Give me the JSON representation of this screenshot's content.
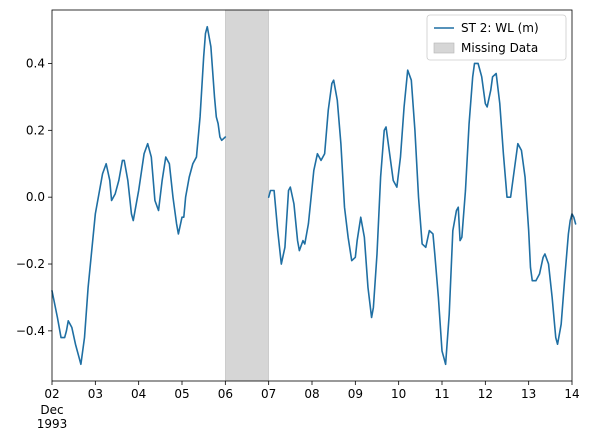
{
  "chart_data": {
    "type": "line",
    "title": "",
    "xlabel": "",
    "ylabel": "",
    "x_domain": [
      "1993-12-02",
      "1993-12-14"
    ],
    "ylim": [
      -0.55,
      0.56
    ],
    "x_ticks": [
      {
        "date": "1993-12-02",
        "label": "02",
        "sublabels": [
          "Dec",
          "1993"
        ]
      },
      {
        "date": "1993-12-03",
        "label": "03"
      },
      {
        "date": "1993-12-04",
        "label": "04"
      },
      {
        "date": "1993-12-05",
        "label": "05"
      },
      {
        "date": "1993-12-06",
        "label": "06"
      },
      {
        "date": "1993-12-07",
        "label": "07"
      },
      {
        "date": "1993-12-08",
        "label": "08"
      },
      {
        "date": "1993-12-09",
        "label": "09"
      },
      {
        "date": "1993-12-10",
        "label": "10"
      },
      {
        "date": "1993-12-11",
        "label": "11"
      },
      {
        "date": "1993-12-12",
        "label": "12"
      },
      {
        "date": "1993-12-13",
        "label": "13"
      },
      {
        "date": "1993-12-14",
        "label": "14"
      }
    ],
    "y_ticks": [
      {
        "value": 0.4,
        "label": "0.4"
      },
      {
        "value": 0.2,
        "label": "0.2"
      },
      {
        "value": 0.0,
        "label": "0.0"
      },
      {
        "value": -0.2,
        "label": "−0.2"
      },
      {
        "value": -0.4,
        "label": "−0.4"
      }
    ],
    "grid": false,
    "legend_position": "top-right",
    "legend": [
      {
        "label": "ST 2: WL (m)",
        "kind": "line"
      },
      {
        "label": "Missing Data",
        "kind": "patch"
      }
    ],
    "missing_span": {
      "start": "1993-12-06",
      "end": "1993-12-07",
      "color": "#d6d6d6"
    },
    "series": [
      {
        "name": "ST 2: WL (m)",
        "color": "#1f6fa3",
        "segments": [
          [
            [
              "1993-12-02T00:00",
              -0.28
            ],
            [
              "1993-12-02T03:00",
              -0.36
            ],
            [
              "1993-12-02T05:00",
              -0.42
            ],
            [
              "1993-12-02T07:00",
              -0.42
            ],
            [
              "1993-12-02T08:00",
              -0.4
            ],
            [
              "1993-12-02T09:00",
              -0.37
            ],
            [
              "1993-12-02T10:00",
              -0.38
            ],
            [
              "1993-12-02T11:00",
              -0.39
            ],
            [
              "1993-12-02T13:00",
              -0.44
            ],
            [
              "1993-12-02T15:00",
              -0.48
            ],
            [
              "1993-12-02T16:00",
              -0.5
            ],
            [
              "1993-12-02T18:00",
              -0.42
            ],
            [
              "1993-12-02T20:00",
              -0.27
            ],
            [
              "1993-12-03T00:00",
              -0.05
            ],
            [
              "1993-12-03T04:00",
              0.07
            ],
            [
              "1993-12-03T06:00",
              0.1
            ],
            [
              "1993-12-03T08:00",
              0.05
            ],
            [
              "1993-12-03T09:00",
              -0.01
            ],
            [
              "1993-12-03T11:00",
              0.01
            ],
            [
              "1993-12-03T13:00",
              0.05
            ],
            [
              "1993-12-03T15:00",
              0.11
            ],
            [
              "1993-12-03T16:00",
              0.11
            ],
            [
              "1993-12-03T18:00",
              0.05
            ],
            [
              "1993-12-03T20:00",
              -0.05
            ],
            [
              "1993-12-03T21:00",
              -0.07
            ],
            [
              "1993-12-04T00:00",
              0.02
            ],
            [
              "1993-12-04T03:00",
              0.13
            ],
            [
              "1993-12-04T05:00",
              0.16
            ],
            [
              "1993-12-04T07:00",
              0.12
            ],
            [
              "1993-12-04T09:00",
              -0.01
            ],
            [
              "1993-12-04T11:00",
              -0.04
            ],
            [
              "1993-12-04T13:00",
              0.05
            ],
            [
              "1993-12-04T15:00",
              0.12
            ],
            [
              "1993-12-04T17:00",
              0.1
            ],
            [
              "1993-12-04T19:00",
              0.0
            ],
            [
              "1993-12-04T21:00",
              -0.08
            ],
            [
              "1993-12-04T22:00",
              -0.11
            ],
            [
              "1993-12-05T00:00",
              -0.06
            ],
            [
              "1993-12-05T01:00",
              -0.06
            ],
            [
              "1993-12-05T02:00",
              0.0
            ],
            [
              "1993-12-05T03:00",
              0.03
            ],
            [
              "1993-12-05T04:00",
              0.06
            ],
            [
              "1993-12-05T06:00",
              0.1
            ],
            [
              "1993-12-05T08:00",
              0.12
            ],
            [
              "1993-12-05T10:00",
              0.24
            ],
            [
              "1993-12-05T12:00",
              0.42
            ],
            [
              "1993-12-05T13:00",
              0.49
            ],
            [
              "1993-12-05T14:00",
              0.51
            ],
            [
              "1993-12-05T16:00",
              0.45
            ],
            [
              "1993-12-05T18:00",
              0.3
            ],
            [
              "1993-12-05T19:00",
              0.24
            ],
            [
              "1993-12-05T20:00",
              0.22
            ],
            [
              "1993-12-05T21:00",
              0.18
            ],
            [
              "1993-12-05T22:00",
              0.17
            ],
            [
              "1993-12-06T00:00",
              0.18
            ]
          ],
          [
            [
              "1993-12-07T00:00",
              0.0
            ],
            [
              "1993-12-07T01:00",
              0.02
            ],
            [
              "1993-12-07T03:00",
              0.02
            ],
            [
              "1993-12-07T05:00",
              -0.1
            ],
            [
              "1993-12-07T07:00",
              -0.2
            ],
            [
              "1993-12-07T09:00",
              -0.15
            ],
            [
              "1993-12-07T11:00",
              0.02
            ],
            [
              "1993-12-07T12:00",
              0.03
            ],
            [
              "1993-12-07T14:00",
              -0.02
            ],
            [
              "1993-12-07T16:00",
              -0.13
            ],
            [
              "1993-12-07T17:00",
              -0.16
            ],
            [
              "1993-12-07T19:00",
              -0.13
            ],
            [
              "1993-12-07T20:00",
              -0.14
            ],
            [
              "1993-12-07T22:00",
              -0.08
            ],
            [
              "1993-12-08T01:00",
              0.08
            ],
            [
              "1993-12-08T03:00",
              0.13
            ],
            [
              "1993-12-08T05:00",
              0.11
            ],
            [
              "1993-12-08T07:00",
              0.13
            ],
            [
              "1993-12-08T09:00",
              0.26
            ],
            [
              "1993-12-08T11:00",
              0.34
            ],
            [
              "1993-12-08T12:00",
              0.35
            ],
            [
              "1993-12-08T14:00",
              0.29
            ],
            [
              "1993-12-08T16:00",
              0.16
            ],
            [
              "1993-12-08T18:00",
              -0.03
            ],
            [
              "1993-12-08T20:00",
              -0.12
            ],
            [
              "1993-12-08T22:00",
              -0.19
            ],
            [
              "1993-12-09T00:00",
              -0.18
            ],
            [
              "1993-12-09T01:00",
              -0.13
            ],
            [
              "1993-12-09T03:00",
              -0.06
            ],
            [
              "1993-12-09T05:00",
              -0.12
            ],
            [
              "1993-12-09T07:00",
              -0.27
            ],
            [
              "1993-12-09T09:00",
              -0.36
            ],
            [
              "1993-12-09T10:00",
              -0.33
            ],
            [
              "1993-12-09T12:00",
              -0.17
            ],
            [
              "1993-12-09T14:00",
              0.06
            ],
            [
              "1993-12-09T16:00",
              0.2
            ],
            [
              "1993-12-09T17:00",
              0.21
            ],
            [
              "1993-12-09T19:00",
              0.13
            ],
            [
              "1993-12-09T21:00",
              0.05
            ],
            [
              "1993-12-09T23:00",
              0.03
            ],
            [
              "1993-12-10T01:00",
              0.12
            ],
            [
              "1993-12-10T03:00",
              0.27
            ],
            [
              "1993-12-10T05:00",
              0.38
            ],
            [
              "1993-12-10T07:00",
              0.35
            ],
            [
              "1993-12-10T09:00",
              0.2
            ],
            [
              "1993-12-10T11:00",
              0.0
            ],
            [
              "1993-12-10T13:00",
              -0.14
            ],
            [
              "1993-12-10T15:00",
              -0.15
            ],
            [
              "1993-12-10T17:00",
              -0.1
            ],
            [
              "1993-12-10T19:00",
              -0.11
            ],
            [
              "1993-12-10T20:00",
              -0.17
            ],
            [
              "1993-12-10T22:00",
              -0.3
            ],
            [
              "1993-12-11T00:00",
              -0.46
            ],
            [
              "1993-12-11T01:00",
              -0.48
            ],
            [
              "1993-12-11T02:00",
              -0.5
            ],
            [
              "1993-12-11T04:00",
              -0.35
            ],
            [
              "1993-12-11T06:00",
              -0.1
            ],
            [
              "1993-12-11T08:00",
              -0.04
            ],
            [
              "1993-12-11T09:00",
              -0.03
            ],
            [
              "1993-12-11T10:00",
              -0.13
            ],
            [
              "1993-12-11T11:00",
              -0.12
            ],
            [
              "1993-12-11T13:00",
              0.02
            ],
            [
              "1993-12-11T15:00",
              0.22
            ],
            [
              "1993-12-11T17:00",
              0.36
            ],
            [
              "1993-12-11T18:00",
              0.4
            ],
            [
              "1993-12-11T20:00",
              0.4
            ],
            [
              "1993-12-11T22:00",
              0.36
            ],
            [
              "1993-12-12T00:00",
              0.28
            ],
            [
              "1993-12-12T01:00",
              0.27
            ],
            [
              "1993-12-12T03:00",
              0.32
            ],
            [
              "1993-12-12T04:00",
              0.36
            ],
            [
              "1993-12-12T06:00",
              0.37
            ],
            [
              "1993-12-12T08:00",
              0.28
            ],
            [
              "1993-12-12T10:00",
              0.13
            ],
            [
              "1993-12-12T12:00",
              0.0
            ],
            [
              "1993-12-12T14:00",
              0.0
            ],
            [
              "1993-12-12T16:00",
              0.08
            ],
            [
              "1993-12-12T18:00",
              0.16
            ],
            [
              "1993-12-12T20:00",
              0.14
            ],
            [
              "1993-12-12T22:00",
              0.06
            ],
            [
              "1993-12-13T00:00",
              -0.1
            ],
            [
              "1993-12-13T01:00",
              -0.21
            ],
            [
              "1993-12-13T02:00",
              -0.25
            ],
            [
              "1993-12-13T04:00",
              -0.25
            ],
            [
              "1993-12-13T06:00",
              -0.23
            ],
            [
              "1993-12-13T08:00",
              -0.18
            ],
            [
              "1993-12-13T09:00",
              -0.17
            ],
            [
              "1993-12-13T11:00",
              -0.2
            ],
            [
              "1993-12-13T13:00",
              -0.3
            ],
            [
              "1993-12-13T15:00",
              -0.42
            ],
            [
              "1993-12-13T16:00",
              -0.44
            ],
            [
              "1993-12-13T18:00",
              -0.38
            ],
            [
              "1993-12-13T20:00",
              -0.24
            ],
            [
              "1993-12-13T22:00",
              -0.11
            ],
            [
              "1993-12-13T23:00",
              -0.07
            ],
            [
              "1993-12-14T00:00",
              -0.05
            ],
            [
              "1993-12-14T01:00",
              -0.06
            ],
            [
              "1993-12-14T02:00",
              -0.08
            ]
          ]
        ]
      }
    ]
  }
}
